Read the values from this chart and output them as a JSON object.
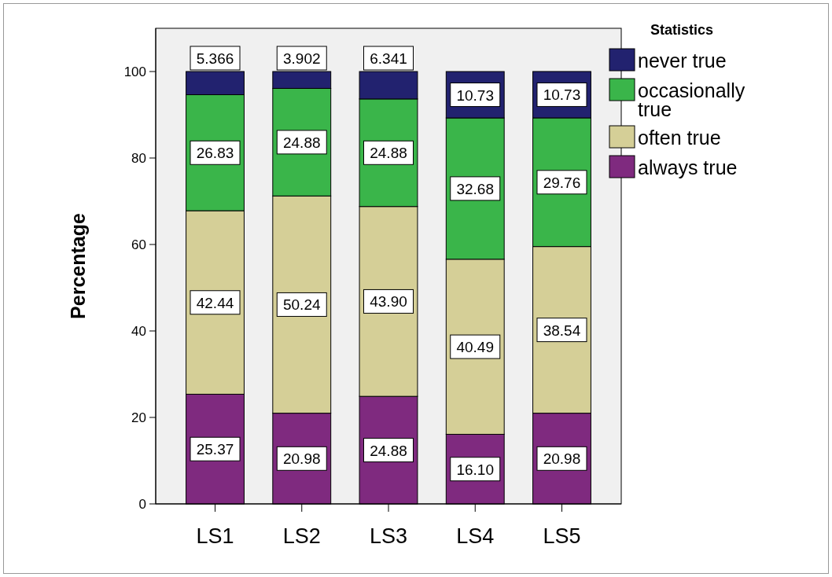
{
  "chart_data": {
    "type": "bar",
    "stacked": true,
    "ylabel": "Percentage",
    "legend_title": "Statistics",
    "legend": "top right",
    "categories": [
      "LS1",
      "LS2",
      "LS3",
      "LS4",
      "LS5"
    ],
    "ylim": [
      0,
      110
    ],
    "yticks": [
      0,
      20,
      40,
      60,
      80,
      100
    ],
    "grid": false,
    "series": [
      {
        "name": "always true",
        "color": "#7f2a7f",
        "values": [
          25.37,
          20.98,
          24.88,
          16.1,
          20.98
        ],
        "value_labels": [
          "25.37",
          "20.98",
          "24.88",
          "16.10",
          "20.98"
        ]
      },
      {
        "name": "often true",
        "color": "#d5cf97",
        "values": [
          42.44,
          50.24,
          43.9,
          40.49,
          38.54
        ],
        "value_labels": [
          "42.44",
          "50.24",
          "43.90",
          "40.49",
          "38.54"
        ]
      },
      {
        "name": "occasionally true",
        "color": "#3ab54a",
        "values": [
          26.83,
          24.88,
          24.88,
          32.68,
          29.76
        ],
        "value_labels": [
          "26.83",
          "24.88",
          "24.88",
          "32.68",
          "29.76"
        ]
      },
      {
        "name": "never true",
        "color": "#22226f",
        "values": [
          5.366,
          3.902,
          6.341,
          10.73,
          10.73
        ],
        "value_labels": [
          "5.366",
          "3.902",
          "6.341",
          "10.73",
          "10.73"
        ]
      }
    ]
  }
}
